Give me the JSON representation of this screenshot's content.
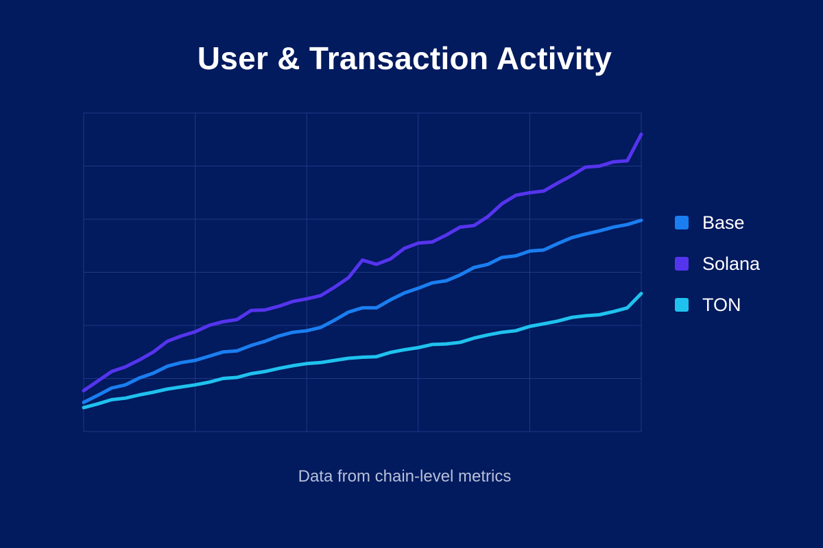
{
  "chart_data": {
    "type": "line",
    "title": "User & Transaction Activity",
    "subtitle": "",
    "xlabel": "",
    "ylabel": "",
    "caption": "Data from chain-level metrics",
    "x": [
      0,
      1,
      2,
      3,
      4,
      5,
      6,
      7,
      8,
      9,
      10,
      11,
      12,
      13,
      14,
      15,
      16,
      17,
      18,
      19,
      20,
      21,
      22,
      23,
      24,
      25,
      26,
      27,
      28,
      29,
      30,
      31,
      32,
      33,
      34,
      35,
      36,
      37,
      38,
      39,
      40
    ],
    "xlim": [
      0,
      40
    ],
    "ylim": [
      0,
      6
    ],
    "grid": true,
    "legend_position": "right",
    "series": [
      {
        "name": "Base",
        "color": "#1a7ef0",
        "values": [
          0.55,
          0.68,
          0.82,
          0.88,
          1.01,
          1.1,
          1.23,
          1.3,
          1.34,
          1.42,
          1.5,
          1.52,
          1.62,
          1.7,
          1.8,
          1.87,
          1.9,
          1.96,
          2.1,
          2.25,
          2.33,
          2.33,
          2.48,
          2.61,
          2.7,
          2.8,
          2.84,
          2.95,
          3.09,
          3.15,
          3.28,
          3.31,
          3.4,
          3.42,
          3.54,
          3.65,
          3.72,
          3.78,
          3.85,
          3.9,
          3.98
        ]
      },
      {
        "name": "Solana",
        "color": "#5534ee",
        "values": [
          0.77,
          0.95,
          1.13,
          1.22,
          1.35,
          1.5,
          1.7,
          1.8,
          1.88,
          2.0,
          2.07,
          2.11,
          2.28,
          2.29,
          2.36,
          2.45,
          2.5,
          2.56,
          2.72,
          2.9,
          3.23,
          3.15,
          3.25,
          3.45,
          3.55,
          3.57,
          3.7,
          3.85,
          3.88,
          4.05,
          4.29,
          4.45,
          4.5,
          4.53,
          4.68,
          4.82,
          4.98,
          5.0,
          5.08,
          5.1,
          5.6
        ]
      },
      {
        "name": "TON",
        "color": "#1fc2ee",
        "values": [
          0.45,
          0.52,
          0.6,
          0.63,
          0.69,
          0.74,
          0.8,
          0.84,
          0.88,
          0.93,
          1.0,
          1.02,
          1.09,
          1.13,
          1.19,
          1.24,
          1.28,
          1.3,
          1.34,
          1.38,
          1.4,
          1.41,
          1.49,
          1.54,
          1.58,
          1.64,
          1.65,
          1.68,
          1.76,
          1.82,
          1.87,
          1.9,
          1.98,
          2.03,
          2.08,
          2.15,
          2.18,
          2.2,
          2.26,
          2.33,
          2.6
        ]
      }
    ]
  }
}
